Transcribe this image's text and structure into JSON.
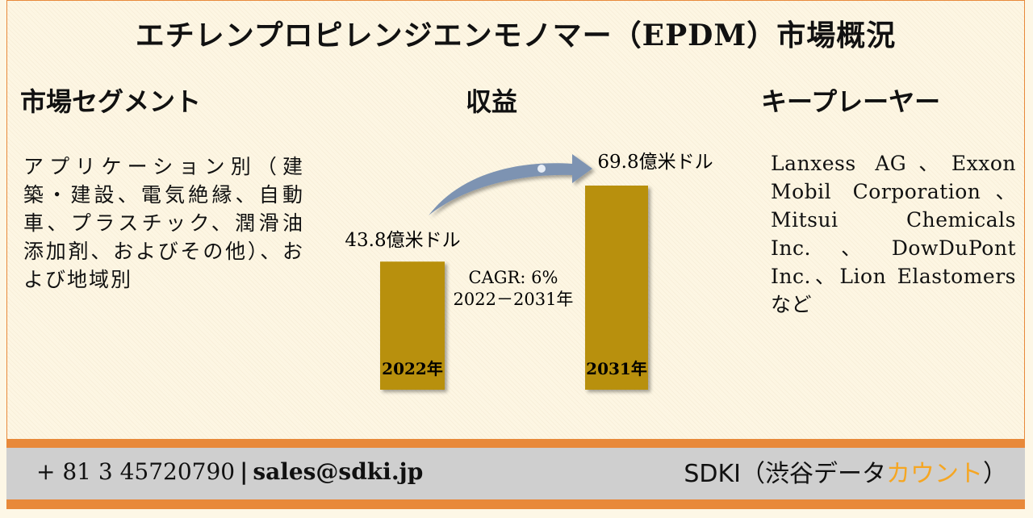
{
  "title": "エチレンプロピレンジエンモノマー（EPDM）市場概況",
  "segments": {
    "heading": "市場セグメント",
    "text": "アプリケーション別（建築・建設、電気絶縁、自動車、プラスチック、潤滑油添加剤、およびその他）、および地域別"
  },
  "revenue": {
    "heading": "収益"
  },
  "players": {
    "heading": "キープレーヤー",
    "text": "Lanxess AG、Exxon Mobil Corporation、Mitsui Chemicals Inc.、DowDuPont Inc.、Lion Elastomersなど"
  },
  "chart_data": {
    "type": "bar",
    "categories": [
      "2022年",
      "2031年"
    ],
    "values": [
      43.8,
      69.8
    ],
    "value_labels": [
      "43.8億米ドル",
      "69.8億米ドル"
    ],
    "unit": "億米ドル",
    "annotation": [
      "CAGR: 6%",
      "2022－2031年"
    ],
    "colors": {
      "bar": "#b8900a",
      "arrow": "#7d93b2"
    }
  },
  "footer": {
    "phone": "+ 81 3 45720790",
    "separator": "|",
    "email": "sales@sdki.jp",
    "brand_prefix": "SDKI（渋谷データ",
    "brand_accent": "カウント",
    "brand_suffix": "）"
  }
}
